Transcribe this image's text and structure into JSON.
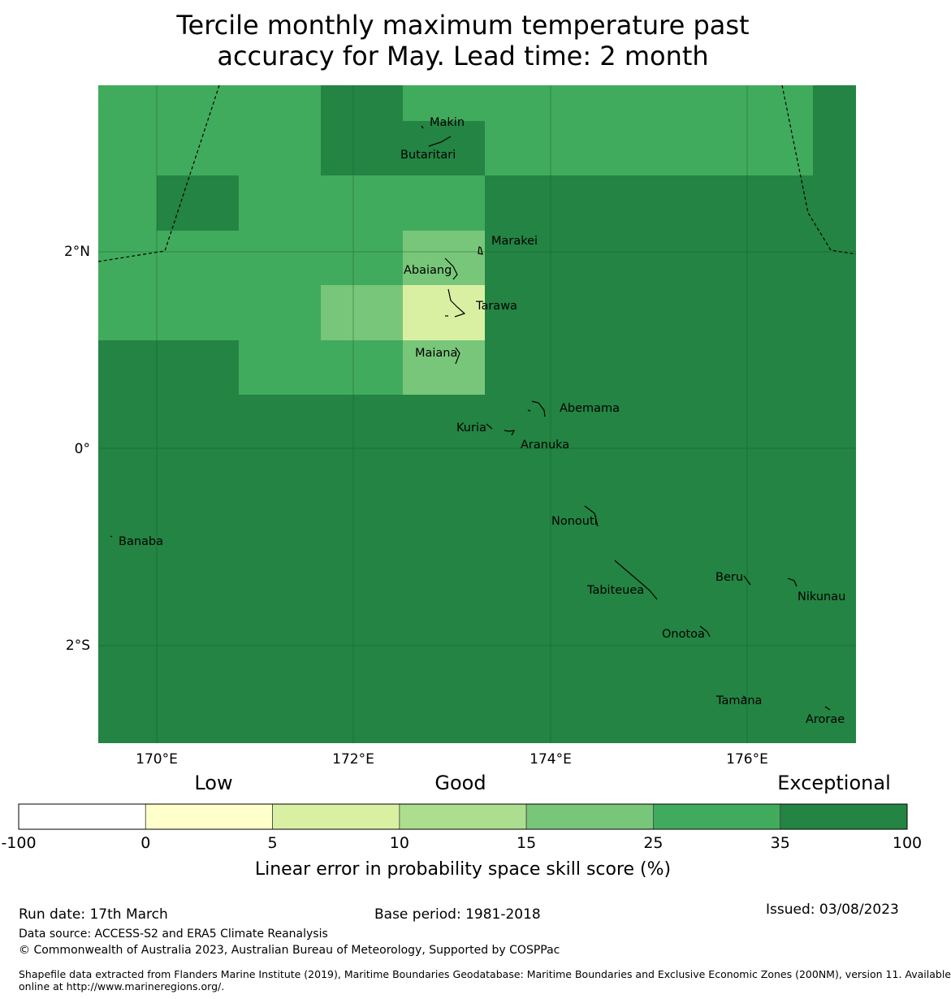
{
  "title": {
    "line1": "Tercile monthly maximum temperature past",
    "line2": "accuracy for May. Lead time: 2 month"
  },
  "map": {
    "lat_ticks": [
      "2°N",
      "0°",
      "2°S"
    ],
    "lon_ticks": [
      "170°E",
      "172°E",
      "174°E",
      "176°E"
    ],
    "islands": [
      "Makin",
      "Butaritari",
      "Marakei",
      "Abaiang",
      "Tarawa",
      "Maiana",
      "Abemama",
      "Kuria",
      "Aranuka",
      "Nonouti",
      "Banaba",
      "Beru",
      "Nikunau",
      "Tabiteuea",
      "Onotoa",
      "Tamana",
      "Arorae"
    ],
    "cell_colors": {
      "exceptional": "#238443",
      "band_25_35": "#41ab5d",
      "band_15_25": "#78c679",
      "band_5_10": "#d9f0a3"
    }
  },
  "legend": {
    "categories": [
      "Low",
      "Good",
      "Exceptional"
    ],
    "ticks": [
      "-100",
      "0",
      "5",
      "10",
      "15",
      "25",
      "35",
      "100"
    ],
    "colors": [
      "#ffffff",
      "#ffffcc",
      "#d9f0a3",
      "#addd8e",
      "#78c679",
      "#41ab5d",
      "#238443"
    ],
    "label": "Linear error in probability space skill score (%)"
  },
  "footer": {
    "run_date": "Run date: 17th March",
    "base_period": "Base period: 1981-2018",
    "issued": "Issued: 03/08/2023",
    "data_source": "Data source: ACCESS-S2 and ERA5 Climate Reanalysis",
    "copyright": "© Commonwealth of Australia 2023, Australian Bureau of Meteorology, Supported by COSPPac",
    "shapefile_line1": "Shapefile data extracted from Flanders Marine Institute (2019), Maritime Boundaries Geodatabase: Maritime Boundaries and Exclusive Economic Zones (200NM), version 11. Available",
    "shapefile_line2": "online at http://www.marineregions.org/."
  }
}
